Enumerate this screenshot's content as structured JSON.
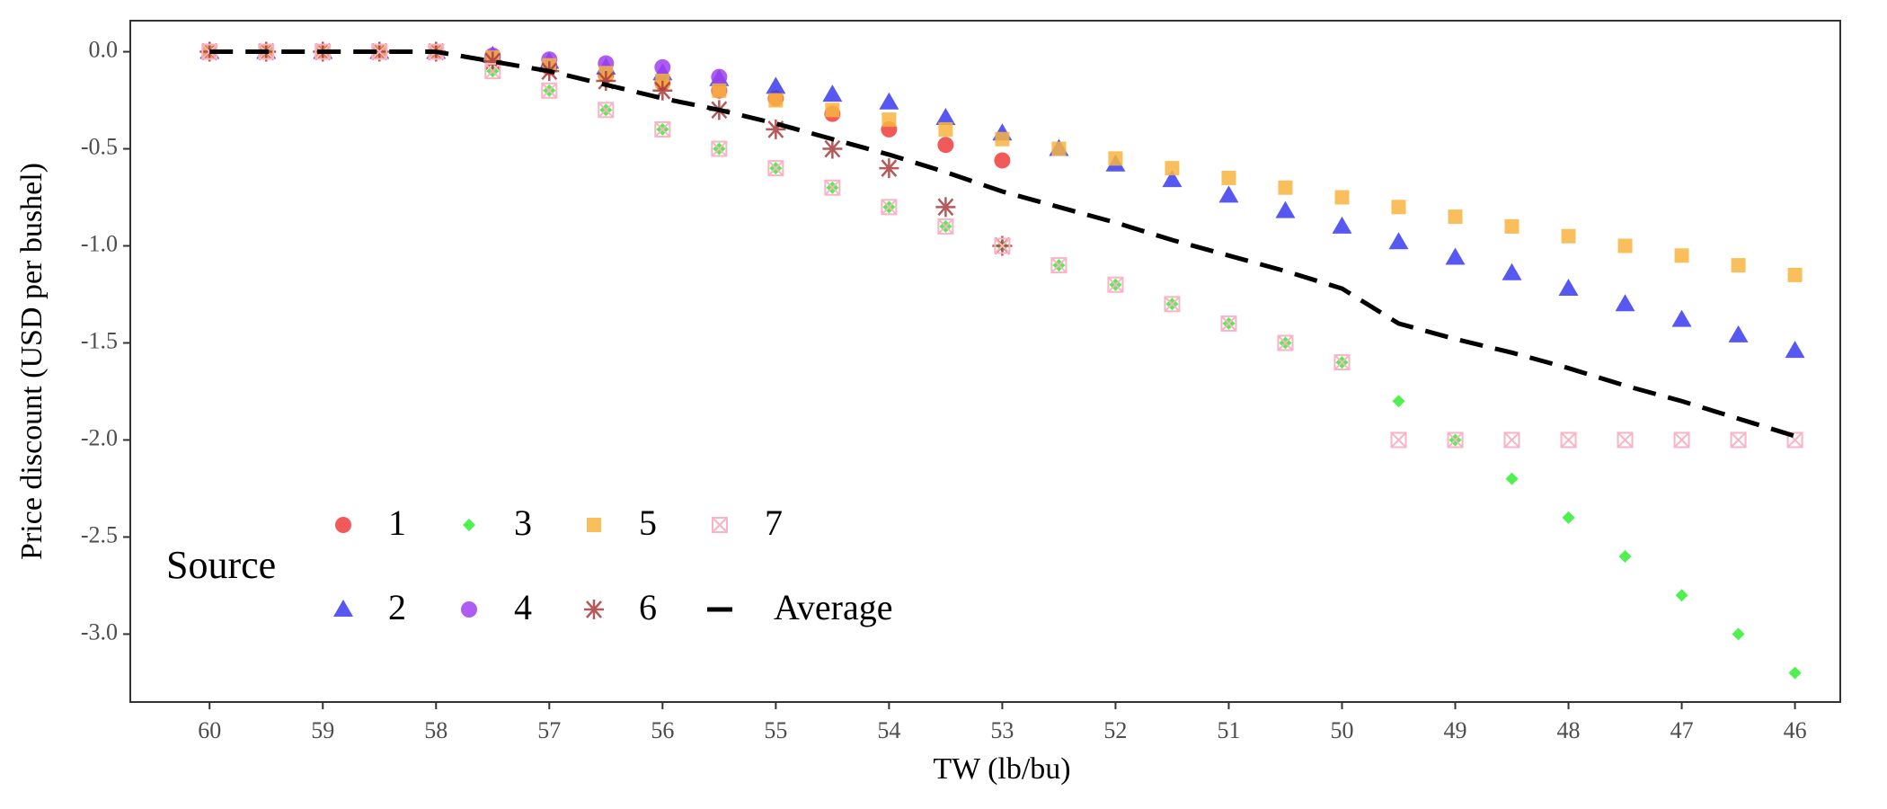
{
  "chart_data": {
    "type": "scatter",
    "x_label": "TW (lb/bu)",
    "y_label": "Price discount (USD per bushel)",
    "x": [
      60,
      59.5,
      59,
      58.5,
      58,
      57.5,
      57,
      56.5,
      56,
      55.5,
      55,
      54.5,
      54,
      53.5,
      53,
      52.5,
      52,
      51.5,
      51,
      50.5,
      50,
      49.5,
      49,
      48.5,
      48,
      47.5,
      47,
      46.5,
      46
    ],
    "xlim": [
      60.7,
      45.6
    ],
    "ylim": [
      -3.35,
      0.16
    ],
    "xticks": [
      60,
      59,
      58,
      57,
      56,
      55,
      54,
      53,
      52,
      51,
      50,
      49,
      48,
      47,
      46
    ],
    "yticks": [
      {
        "value": 0,
        "label": "0.0"
      },
      -0.5,
      {
        "value": -1,
        "label": "-1.0"
      },
      -1.5,
      {
        "value": -2,
        "label": "-2.0"
      },
      -2.5,
      {
        "value": -3,
        "label": "-3.0"
      }
    ],
    "legend_title": "Source",
    "legend_position": "bottom-left",
    "series": [
      {
        "name": "1",
        "color": "#f03c3c",
        "marker": "circle",
        "values": [
          0,
          0,
          0,
          0,
          0,
          -0.03,
          -0.08,
          -0.12,
          -0.16,
          -0.2,
          -0.24,
          -0.32,
          -0.4,
          -0.48,
          -0.56,
          null,
          null,
          null,
          null,
          null,
          null,
          null,
          null,
          null,
          null,
          null,
          null,
          null,
          null
        ]
      },
      {
        "name": "2",
        "color": "#3a3af0",
        "marker": "triangle",
        "values": [
          0,
          0,
          0,
          0,
          0,
          -0.02,
          -0.05,
          -0.08,
          -0.11,
          -0.14,
          -0.18,
          -0.22,
          -0.26,
          -0.34,
          -0.42,
          -0.5,
          -0.58,
          -0.66,
          -0.74,
          -0.82,
          -0.9,
          -0.98,
          -1.06,
          -1.14,
          -1.22,
          -1.3,
          -1.38,
          -1.46,
          -1.54
        ]
      },
      {
        "name": "3",
        "color": "#3cf03c",
        "marker": "diamond",
        "values": [
          0,
          0,
          0,
          0,
          0,
          -0.1,
          -0.2,
          -0.3,
          -0.4,
          -0.5,
          -0.6,
          -0.7,
          -0.8,
          -0.9,
          -1.0,
          -1.1,
          -1.2,
          -1.3,
          -1.4,
          -1.5,
          -1.6,
          -1.8,
          -2.0,
          -2.2,
          -2.4,
          -2.6,
          -2.8,
          -3.0,
          -3.2
        ]
      },
      {
        "name": "4",
        "color": "#a040f0",
        "marker": "circle",
        "values": [
          0,
          0,
          0,
          0,
          0,
          -0.02,
          -0.04,
          -0.06,
          -0.08,
          -0.13,
          null,
          null,
          null,
          null,
          null,
          null,
          null,
          null,
          null,
          null,
          null,
          null,
          null,
          null,
          null,
          null,
          null,
          null,
          null
        ]
      },
      {
        "name": "5",
        "color": "#f8b440",
        "marker": "square",
        "values": [
          0,
          0,
          0,
          0,
          0,
          -0.03,
          -0.07,
          -0.11,
          -0.15,
          -0.2,
          -0.25,
          -0.3,
          -0.35,
          -0.4,
          -0.45,
          -0.5,
          -0.55,
          -0.6,
          -0.65,
          -0.7,
          -0.75,
          -0.8,
          -0.85,
          -0.9,
          -0.95,
          -1.0,
          -1.05,
          -1.1,
          -1.15
        ]
      },
      {
        "name": "6",
        "color": "#a83c3c",
        "marker": "asterisk",
        "values": [
          0,
          0,
          0,
          0,
          0,
          -0.05,
          -0.1,
          -0.15,
          -0.2,
          -0.3,
          -0.4,
          -0.5,
          -0.6,
          -0.8,
          -1.0,
          null,
          null,
          null,
          null,
          null,
          null,
          null,
          null,
          null,
          null,
          null,
          null,
          null,
          null
        ]
      },
      {
        "name": "7",
        "color": "#f8b4c4",
        "marker": "boxx",
        "values": [
          0,
          0,
          0,
          0,
          0,
          -0.1,
          -0.2,
          -0.3,
          -0.4,
          -0.5,
          -0.6,
          -0.7,
          -0.8,
          -0.9,
          -1.0,
          -1.1,
          -1.2,
          -1.3,
          -1.4,
          -1.5,
          -1.6,
          -2.0,
          -2.0,
          -2.0,
          -2.0,
          -2.0,
          -2.0,
          -2.0,
          -2.0
        ]
      },
      {
        "name": "Average",
        "color": "#000000",
        "marker": "dashed-line",
        "values": [
          0,
          0,
          0,
          0,
          0,
          -0.05,
          -0.1,
          -0.17,
          -0.24,
          -0.3,
          -0.37,
          -0.45,
          -0.53,
          -0.62,
          -0.72,
          -0.8,
          -0.88,
          -0.97,
          -1.05,
          -1.13,
          -1.22,
          -1.4,
          -1.48,
          -1.55,
          -1.63,
          -1.72,
          -1.8,
          -1.89,
          -1.98
        ]
      }
    ]
  }
}
